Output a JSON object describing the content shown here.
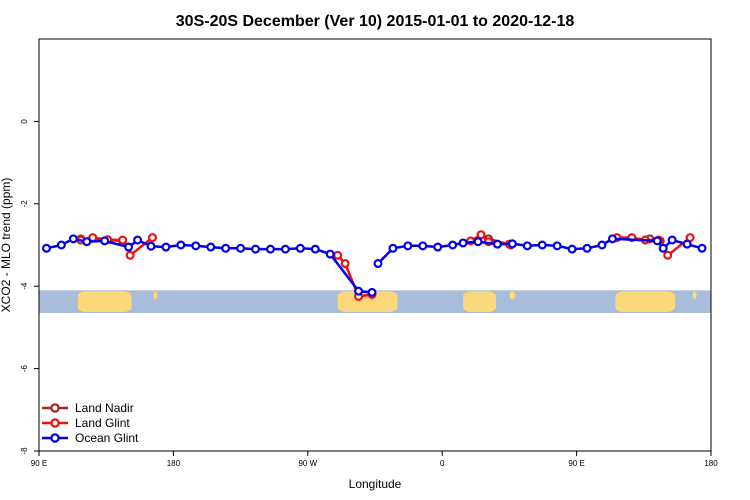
{
  "chart_data": {
    "type": "line",
    "title": "30S-20S December (Ver 10)   2015-01-01 to 2020-12-18",
    "xlabel": "Longitude",
    "ylabel": "XCO2 - MLO trend (ppm)",
    "xlim": [
      0,
      450
    ],
    "ylim": [
      -8,
      2
    ],
    "x_ticks": [
      {
        "value": 0,
        "label": "90 E"
      },
      {
        "value": 90,
        "label": "180"
      },
      {
        "value": 180,
        "label": "90 W"
      },
      {
        "value": 270,
        "label": "0"
      },
      {
        "value": 360,
        "label": "90 E"
      },
      {
        "value": 450,
        "label": "180"
      }
    ],
    "y_ticks": [
      {
        "value": 0,
        "label": "0"
      },
      {
        "value": -2,
        "label": "-2"
      },
      {
        "value": -4,
        "label": "-4"
      },
      {
        "value": -6,
        "label": "-6"
      },
      {
        "value": -8,
        "label": "-8"
      }
    ],
    "legend_position": "bottom-left",
    "land_mask": {
      "y_range": [
        -4.65,
        -4.1
      ],
      "ocean_color": "#a8bcdc",
      "land_color": "#fbd97a",
      "land_x_ranges": [
        [
          26,
          62
        ],
        [
          77,
          79
        ],
        [
          200,
          240
        ],
        [
          284,
          306
        ],
        [
          315,
          319
        ],
        [
          386,
          426
        ],
        [
          438,
          440
        ]
      ]
    },
    "series": [
      {
        "name": "Land Nadir",
        "color": "#a02828",
        "segments": [
          [
            [
              28,
              -2.85
            ],
            [
              56,
              -2.9
            ]
          ],
          [
            [
              301,
              -2.85
            ],
            [
              316,
              -3.0
            ]
          ],
          [
            [
              409,
              -2.85
            ],
            [
              416,
              -2.9
            ]
          ]
        ]
      },
      {
        "name": "Land Glint",
        "color": "#ee1111",
        "segments": [
          [
            [
              28,
              -2.88
            ],
            [
              36,
              -2.82
            ],
            [
              46,
              -2.87
            ],
            [
              56,
              -2.88
            ]
          ],
          [
            [
              61,
              -3.25
            ],
            [
              76,
              -2.82
            ]
          ],
          [
            [
              200,
              -3.25
            ],
            [
              205,
              -3.45
            ],
            [
              214,
              -4.25
            ],
            [
              223,
              -4.2
            ]
          ],
          [
            [
              289,
              -2.9
            ],
            [
              296,
              -2.75
            ],
            [
              301,
              -2.92
            ],
            [
              315,
              -2.98
            ]
          ],
          [
            [
              387,
              -2.82
            ],
            [
              397,
              -2.82
            ],
            [
              406,
              -2.88
            ],
            [
              415,
              -2.88
            ],
            [
              421,
              -3.25
            ],
            [
              436,
              -2.82
            ]
          ]
        ]
      },
      {
        "name": "Ocean Glint",
        "color": "#0000ee",
        "segments": [
          [
            [
              5,
              -3.08
            ],
            [
              15,
              -3.0
            ],
            [
              23,
              -2.85
            ],
            [
              32,
              -2.92
            ],
            [
              44,
              -2.9
            ],
            [
              60,
              -3.05
            ],
            [
              66,
              -2.88
            ],
            [
              75,
              -3.03
            ],
            [
              85,
              -3.05
            ],
            [
              95,
              -3.0
            ],
            [
              105,
              -3.02
            ],
            [
              115,
              -3.05
            ],
            [
              125,
              -3.08
            ],
            [
              135,
              -3.08
            ],
            [
              145,
              -3.1
            ],
            [
              155,
              -3.1
            ],
            [
              165,
              -3.1
            ],
            [
              175,
              -3.08
            ],
            [
              185,
              -3.1
            ],
            [
              195,
              -3.22
            ],
            [
              214,
              -4.12
            ],
            [
              223,
              -4.15
            ]
          ],
          [
            [
              227,
              -3.45
            ],
            [
              237,
              -3.08
            ],
            [
              247,
              -3.02
            ],
            [
              257,
              -3.02
            ],
            [
              267,
              -3.05
            ],
            [
              277,
              -3.0
            ],
            [
              284,
              -2.95
            ],
            [
              294,
              -2.92
            ],
            [
              307,
              -2.98
            ],
            [
              317,
              -2.97
            ],
            [
              327,
              -3.02
            ],
            [
              337,
              -3.0
            ],
            [
              347,
              -3.02
            ],
            [
              357,
              -3.1
            ],
            [
              367,
              -3.08
            ],
            [
              377,
              -3.0
            ],
            [
              384,
              -2.85
            ],
            [
              414,
              -2.9
            ],
            [
              418,
              -3.08
            ],
            [
              424,
              -2.88
            ],
            [
              434,
              -2.98
            ],
            [
              444,
              -3.08
            ]
          ]
        ]
      }
    ]
  }
}
